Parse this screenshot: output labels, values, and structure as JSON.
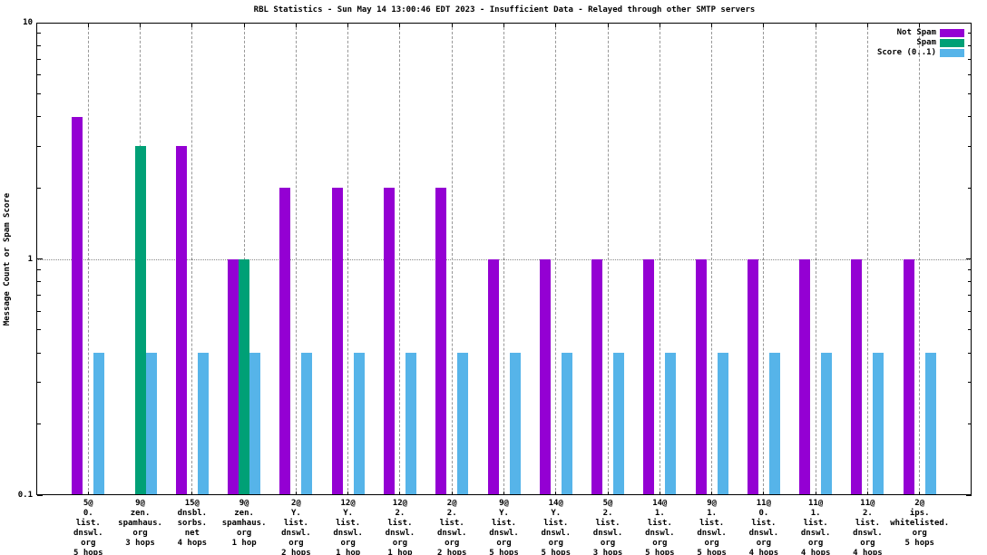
{
  "title": "RBL Statistics - Sun May 14 13:00:46 EDT 2023 - Insufficient Data - Relayed through other SMTP servers",
  "chart_data": {
    "type": "bar",
    "title": "RBL Statistics - Sun May 14 13:00:46 EDT 2023 - Insufficient Data - Relayed through other SMTP servers",
    "xlabel": "",
    "ylabel": "Message Count or Spam Score",
    "yscale": "log",
    "ylim": [
      0.1,
      10
    ],
    "ytick_labels": [
      {
        "value": 10,
        "label": "10"
      },
      {
        "value": 1,
        "label": "1"
      },
      {
        "value": 0.1,
        "label": "0.1"
      }
    ],
    "grid": true,
    "legend_position": "top-right-inside",
    "axis_color": "#000000",
    "grid_color": "#989898",
    "background": "#ffffff",
    "legend": [
      {
        "label": "Not Spam",
        "color": "#9400d3"
      },
      {
        "label": "Spam",
        "color": "#00a076"
      },
      {
        "label": "Score (0..1)",
        "color": "#56b4e9"
      }
    ],
    "categories": [
      [
        "5@",
        "0.",
        "list.",
        "dnswl.",
        "org",
        "5 hops"
      ],
      [
        "9@",
        "zen.",
        "spamhaus.",
        "org",
        "3 hops"
      ],
      [
        "15@",
        "dnsbl.",
        "sorbs.",
        "net",
        "4 hops"
      ],
      [
        "9@",
        "zen.",
        "spamhaus.",
        "org",
        "1 hop"
      ],
      [
        "2@",
        "Y.",
        "list.",
        "dnswl.",
        "org",
        "2 hops"
      ],
      [
        "12@",
        "Y.",
        "list.",
        "dnswl.",
        "org",
        "1 hop"
      ],
      [
        "12@",
        "2.",
        "list.",
        "dnswl.",
        "org",
        "1 hop"
      ],
      [
        "2@",
        "2.",
        "list.",
        "dnswl.",
        "org",
        "2 hops"
      ],
      [
        "9@",
        "Y.",
        "list.",
        "dnswl.",
        "org",
        "5 hops"
      ],
      [
        "14@",
        "Y.",
        "list.",
        "dnswl.",
        "org",
        "5 hops"
      ],
      [
        "5@",
        "2.",
        "list.",
        "dnswl.",
        "org",
        "3 hops"
      ],
      [
        "14@",
        "1.",
        "list.",
        "dnswl.",
        "org",
        "5 hops"
      ],
      [
        "9@",
        "1.",
        "list.",
        "dnswl.",
        "org",
        "5 hops"
      ],
      [
        "11@",
        "0.",
        "list.",
        "dnswl.",
        "org",
        "4 hops"
      ],
      [
        "11@",
        "1.",
        "list.",
        "dnswl.",
        "org",
        "4 hops"
      ],
      [
        "11@",
        "2.",
        "list.",
        "dnswl.",
        "org",
        "4 hops"
      ],
      [
        "2@",
        "ips.",
        "whitelisted.",
        "org",
        "5 hops"
      ]
    ],
    "series": [
      {
        "name": "Not Spam",
        "color": "#9400d3",
        "values": [
          4,
          0,
          3,
          1,
          2,
          2,
          2,
          2,
          1,
          1,
          1,
          1,
          1,
          1,
          1,
          1,
          1
        ]
      },
      {
        "name": "Spam",
        "color": "#00a076",
        "values": [
          0,
          3,
          0,
          1,
          0,
          0,
          0,
          0,
          0,
          0,
          0,
          0,
          0,
          0,
          0,
          0,
          0
        ]
      },
      {
        "name": "Score (0..1)",
        "color": "#56b4e9",
        "values": [
          0.4,
          0.4,
          0.4,
          0.4,
          0.4,
          0.4,
          0.4,
          0.4,
          0.4,
          0.4,
          0.4,
          0.4,
          0.4,
          0.4,
          0.4,
          0.4,
          0.4
        ]
      }
    ]
  }
}
